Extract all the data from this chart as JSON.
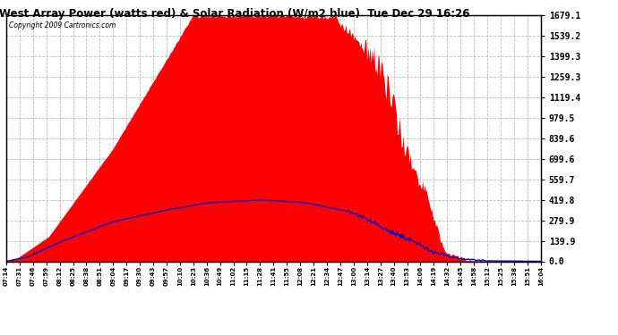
{
  "title": "West Array Power (watts red) & Solar Radiation (W/m2 blue)  Tue Dec 29 16:26",
  "copyright": "Copyright 2009 Cartronics.com",
  "background_color": "#ffffff",
  "plot_bg_color": "#ffffff",
  "grid_color": "#bbbbbb",
  "fill_color": "#ff0000",
  "line_color": "#0000cc",
  "ymax": 1679.1,
  "yticks": [
    0.0,
    139.9,
    279.9,
    419.8,
    559.7,
    699.6,
    839.6,
    979.5,
    1119.4,
    1259.3,
    1399.3,
    1539.2,
    1679.1
  ],
  "ytick_labels": [
    "0.0",
    "139.9",
    "279.9",
    "419.8",
    "559.7",
    "699.6",
    "839.6",
    "979.5",
    "1119.4",
    "1259.3",
    "1399.3",
    "1539.2",
    "1679.1"
  ],
  "xtick_labels": [
    "07:14",
    "07:31",
    "07:46",
    "07:59",
    "08:12",
    "08:25",
    "08:38",
    "08:51",
    "09:04",
    "09:17",
    "09:30",
    "09:43",
    "09:57",
    "10:10",
    "10:23",
    "10:36",
    "10:49",
    "11:02",
    "11:15",
    "11:28",
    "11:41",
    "11:55",
    "12:08",
    "12:21",
    "12:34",
    "12:47",
    "13:00",
    "13:14",
    "13:27",
    "13:40",
    "13:53",
    "14:06",
    "14:19",
    "14:32",
    "14:45",
    "14:58",
    "15:12",
    "15:25",
    "15:38",
    "15:51",
    "16:04"
  ],
  "n_xticks": 41
}
